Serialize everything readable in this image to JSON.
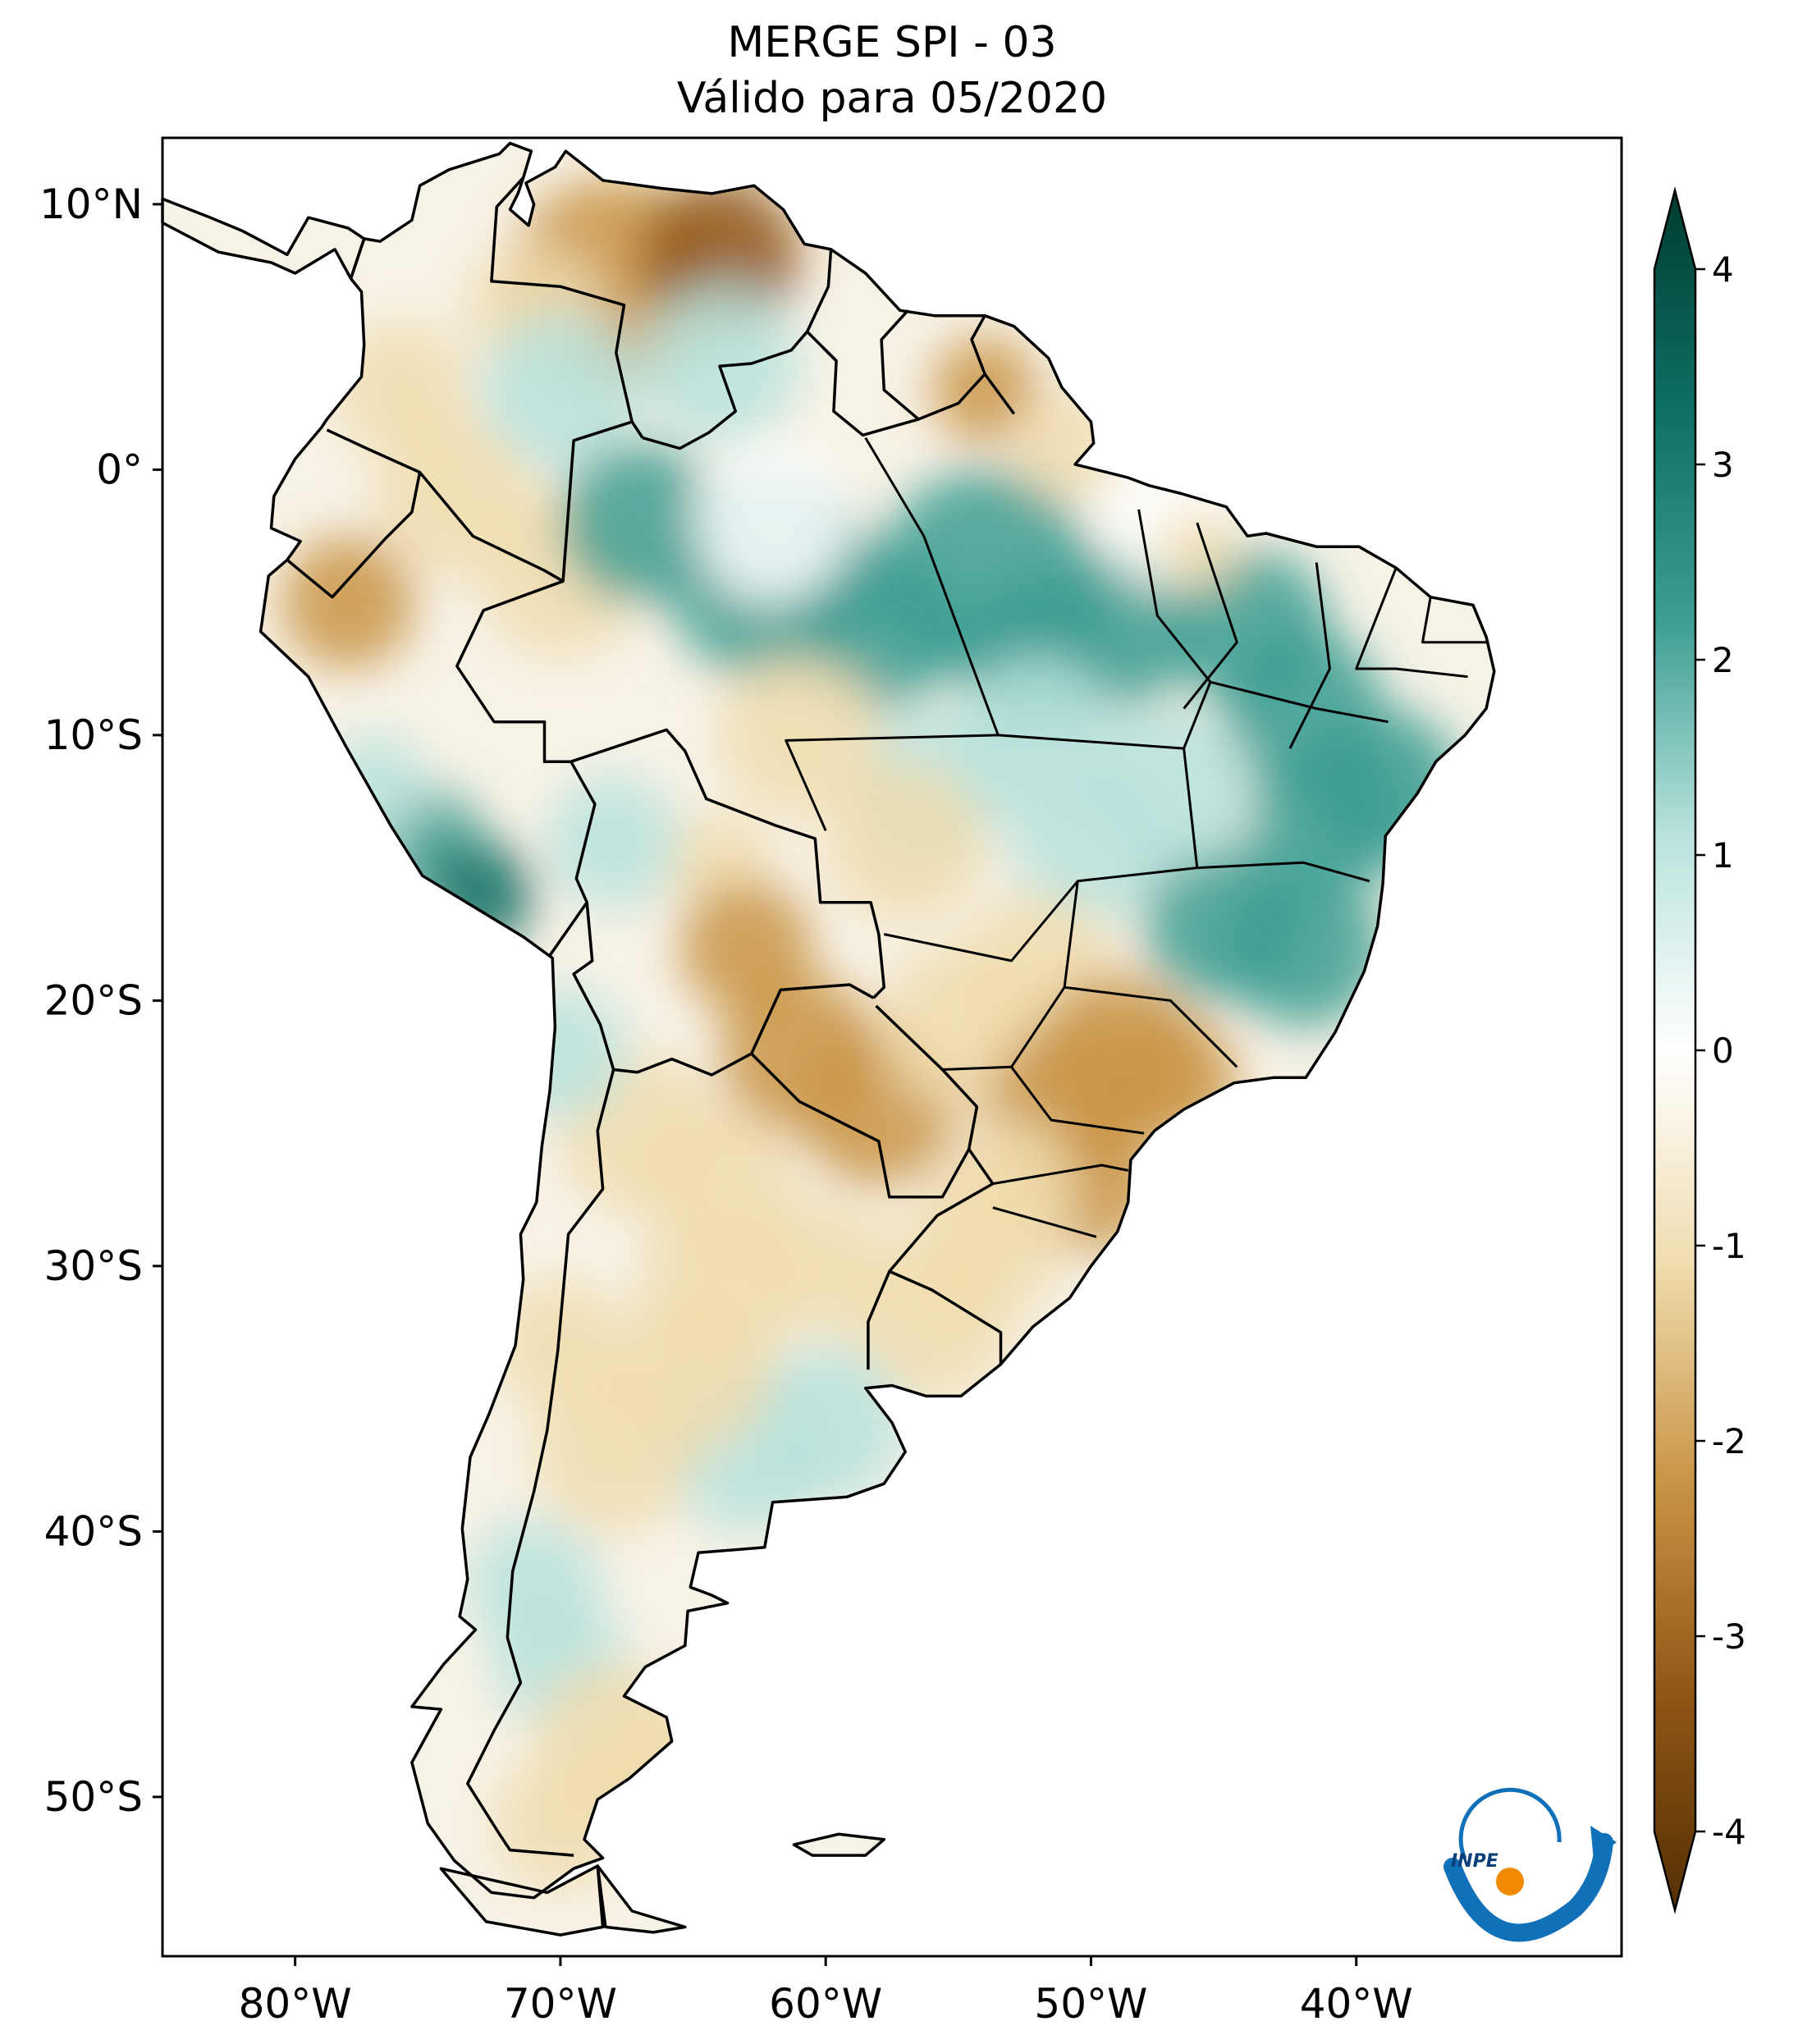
{
  "title": {
    "line1": "MERGE   SPI - 03",
    "line2": "Válido para 05/2020"
  },
  "map": {
    "extent_lon": [
      -85,
      -30
    ],
    "extent_lat": [
      -56,
      12.5
    ],
    "lon_ticks": [
      "80°W",
      "70°W",
      "60°W",
      "50°W",
      "40°W"
    ],
    "lat_ticks": [
      "10°N",
      "0°",
      "10°S",
      "20°S",
      "30°S",
      "40°S",
      "50°S"
    ]
  },
  "colorbar": {
    "range": [
      -4,
      4
    ],
    "ticks": [
      "4",
      "3",
      "2",
      "1",
      "0",
      "-1",
      "-2",
      "-3",
      "-4"
    ],
    "colors": {
      "wet_max": "#003c30",
      "wet_3": "#0d6e64",
      "wet_2": "#3d9e93",
      "wet_1": "#b9e3dd",
      "neutral": "#ffffff",
      "dry_1": "#f0dcae",
      "dry_2": "#c99547",
      "dry_3": "#8f5614",
      "dry_max": "#543005"
    }
  },
  "logo": {
    "text": "INPE",
    "colors": {
      "arc": "#1070b8",
      "sun": "#f08a00"
    }
  }
}
